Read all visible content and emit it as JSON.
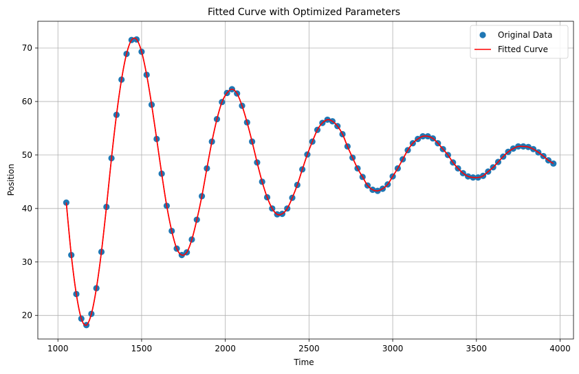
{
  "chart_data": {
    "type": "scatter",
    "title": "Fitted Curve with Optimized Parameters",
    "xlabel": "Time",
    "ylabel": "Position",
    "xlim": [
      880,
      4080
    ],
    "ylim": [
      15.6,
      75
    ],
    "xticks": [
      1000,
      1500,
      2000,
      2500,
      3000,
      3500,
      4000
    ],
    "yticks": [
      20,
      30,
      40,
      50,
      60,
      70
    ],
    "grid": true,
    "legend_position": "top-right",
    "series": [
      {
        "name": "Original Data",
        "kind": "scatter",
        "color": "#1f77b4",
        "x": [
          1050,
          1080,
          1110,
          1140,
          1170,
          1200,
          1230,
          1260,
          1290,
          1320,
          1350,
          1380,
          1410,
          1440,
          1470,
          1500,
          1530,
          1560,
          1590,
          1620,
          1650,
          1680,
          1710,
          1740,
          1770,
          1800,
          1830,
          1860,
          1890,
          1920,
          1950,
          1980,
          2010,
          2040,
          2070,
          2100,
          2130,
          2160,
          2190,
          2220,
          2250,
          2280,
          2310,
          2340,
          2370,
          2400,
          2430,
          2460,
          2490,
          2520,
          2550,
          2580,
          2610,
          2640,
          2670,
          2700,
          2730,
          2760,
          2790,
          2820,
          2850,
          2880,
          2910,
          2940,
          2970,
          3000,
          3030,
          3060,
          3090,
          3120,
          3150,
          3180,
          3210,
          3240,
          3270,
          3300,
          3330,
          3360,
          3390,
          3420,
          3450,
          3480,
          3510,
          3540,
          3570,
          3600,
          3630,
          3660,
          3690,
          3720,
          3750,
          3780,
          3810,
          3840,
          3870,
          3900,
          3930,
          3960
        ],
        "y": [
          41.1,
          31.3,
          24.0,
          19.4,
          18.2,
          20.3,
          25.1,
          31.9,
          40.3,
          49.4,
          57.5,
          64.1,
          68.9,
          71.5,
          71.6,
          69.3,
          65.0,
          59.4,
          53.0,
          46.5,
          40.5,
          35.8,
          32.5,
          31.3,
          31.8,
          34.2,
          37.9,
          42.3,
          47.5,
          52.5,
          56.7,
          59.9,
          61.6,
          62.3,
          61.5,
          59.2,
          56.1,
          52.5,
          48.6,
          45.0,
          42.1,
          40.0,
          38.9,
          39.0,
          40.0,
          42.0,
          44.4,
          47.3,
          50.1,
          52.5,
          54.7,
          56.0,
          56.6,
          56.3,
          55.4,
          53.9,
          51.6,
          49.5,
          47.5,
          45.9,
          44.3,
          43.5,
          43.3,
          43.7,
          44.5,
          46.0,
          47.5,
          49.2,
          50.9,
          52.2,
          53.0,
          53.5,
          53.5,
          53.1,
          52.2,
          51.1,
          50.0,
          48.6,
          47.5,
          46.6,
          46.0,
          45.8,
          45.8,
          46.1,
          46.9,
          47.7,
          48.7,
          49.7,
          50.6,
          51.2,
          51.6,
          51.6,
          51.5,
          51.1,
          50.5,
          49.8,
          49.0,
          48.4
        ]
      },
      {
        "name": "Fitted Curve",
        "kind": "line",
        "color": "#ff0000",
        "x": [
          1050,
          1080,
          1110,
          1140,
          1170,
          1200,
          1230,
          1260,
          1290,
          1320,
          1350,
          1380,
          1410,
          1440,
          1470,
          1500,
          1530,
          1560,
          1590,
          1620,
          1650,
          1680,
          1710,
          1740,
          1770,
          1800,
          1830,
          1860,
          1890,
          1920,
          1950,
          1980,
          2010,
          2040,
          2070,
          2100,
          2130,
          2160,
          2190,
          2220,
          2250,
          2280,
          2310,
          2340,
          2370,
          2400,
          2430,
          2460,
          2490,
          2520,
          2550,
          2580,
          2610,
          2640,
          2670,
          2700,
          2730,
          2760,
          2790,
          2820,
          2850,
          2880,
          2910,
          2940,
          2970,
          3000,
          3030,
          3060,
          3090,
          3120,
          3150,
          3180,
          3210,
          3240,
          3270,
          3300,
          3330,
          3360,
          3390,
          3420,
          3450,
          3480,
          3510,
          3540,
          3570,
          3600,
          3630,
          3660,
          3690,
          3720,
          3750,
          3780,
          3810,
          3840,
          3870,
          3900,
          3930,
          3960
        ],
        "y": [
          41.1,
          31.3,
          24.0,
          19.4,
          18.2,
          20.3,
          25.1,
          31.9,
          40.3,
          49.4,
          57.5,
          64.1,
          68.9,
          71.5,
          71.6,
          69.3,
          65.0,
          59.4,
          53.0,
          46.5,
          40.5,
          35.8,
          32.5,
          31.3,
          31.8,
          34.2,
          37.9,
          42.3,
          47.5,
          52.5,
          56.7,
          59.9,
          61.6,
          62.3,
          61.5,
          59.2,
          56.1,
          52.5,
          48.6,
          45.0,
          42.1,
          40.0,
          38.9,
          39.0,
          40.0,
          42.0,
          44.4,
          47.3,
          50.1,
          52.5,
          54.7,
          56.0,
          56.6,
          56.3,
          55.4,
          53.9,
          51.6,
          49.5,
          47.5,
          45.9,
          44.3,
          43.5,
          43.3,
          43.7,
          44.5,
          46.0,
          47.5,
          49.2,
          50.9,
          52.2,
          53.0,
          53.5,
          53.5,
          53.1,
          52.2,
          51.1,
          50.0,
          48.6,
          47.5,
          46.6,
          46.0,
          45.8,
          45.8,
          46.1,
          46.9,
          47.7,
          48.7,
          49.7,
          50.6,
          51.2,
          51.6,
          51.6,
          51.5,
          51.1,
          50.5,
          49.8,
          49.0,
          48.4
        ]
      }
    ]
  }
}
